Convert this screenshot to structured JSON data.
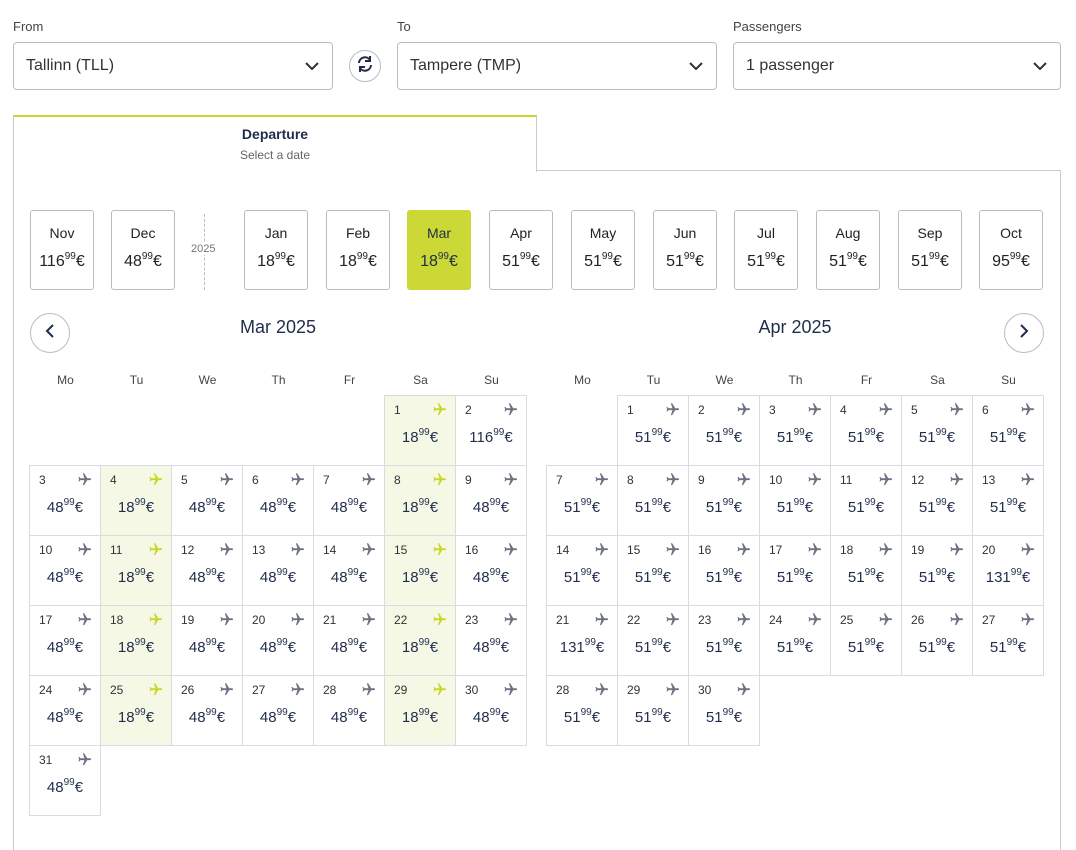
{
  "search": {
    "from": {
      "label": "From",
      "value": "Tallinn (TLL)"
    },
    "to": {
      "label": "To",
      "value": "Tampere (TMP)"
    },
    "passengers": {
      "label": "Passengers",
      "value": "1 passenger"
    }
  },
  "tab": {
    "title": "Departure",
    "subtitle": "Select a date"
  },
  "year_label": "2025",
  "months": [
    {
      "name": "Nov",
      "price": "116",
      "cents": "99",
      "cur": "€",
      "selected": false
    },
    {
      "name": "Dec",
      "price": "48",
      "cents": "99",
      "cur": "€",
      "selected": false
    },
    {
      "name": "Jan",
      "price": "18",
      "cents": "99",
      "cur": "€",
      "selected": false
    },
    {
      "name": "Feb",
      "price": "18",
      "cents": "99",
      "cur": "€",
      "selected": false
    },
    {
      "name": "Mar",
      "price": "18",
      "cents": "99",
      "cur": "€",
      "selected": true
    },
    {
      "name": "Apr",
      "price": "51",
      "cents": "99",
      "cur": "€",
      "selected": false
    },
    {
      "name": "May",
      "price": "51",
      "cents": "99",
      "cur": "€",
      "selected": false
    },
    {
      "name": "Jun",
      "price": "51",
      "cents": "99",
      "cur": "€",
      "selected": false
    },
    {
      "name": "Jul",
      "price": "51",
      "cents": "99",
      "cur": "€",
      "selected": false
    },
    {
      "name": "Aug",
      "price": "51",
      "cents": "99",
      "cur": "€",
      "selected": false
    },
    {
      "name": "Sep",
      "price": "51",
      "cents": "99",
      "cur": "€",
      "selected": false
    },
    {
      "name": "Oct",
      "price": "95",
      "cents": "99",
      "cur": "€",
      "selected": false
    }
  ],
  "weekdays": [
    "Mo",
    "Tu",
    "We",
    "Th",
    "Fr",
    "Sa",
    "Su"
  ],
  "calendars": [
    {
      "title": "Mar 2025",
      "start_offset": 5,
      "days": [
        {
          "d": "1",
          "p": "18"
        },
        {
          "d": "2",
          "p": "116"
        },
        {
          "d": "3",
          "p": "48"
        },
        {
          "d": "4",
          "p": "18"
        },
        {
          "d": "5",
          "p": "48"
        },
        {
          "d": "6",
          "p": "48"
        },
        {
          "d": "7",
          "p": "48"
        },
        {
          "d": "8",
          "p": "18"
        },
        {
          "d": "9",
          "p": "48"
        },
        {
          "d": "10",
          "p": "48"
        },
        {
          "d": "11",
          "p": "18"
        },
        {
          "d": "12",
          "p": "48"
        },
        {
          "d": "13",
          "p": "48"
        },
        {
          "d": "14",
          "p": "48"
        },
        {
          "d": "15",
          "p": "18"
        },
        {
          "d": "16",
          "p": "48"
        },
        {
          "d": "17",
          "p": "48"
        },
        {
          "d": "18",
          "p": "18"
        },
        {
          "d": "19",
          "p": "48"
        },
        {
          "d": "20",
          "p": "48"
        },
        {
          "d": "21",
          "p": "48"
        },
        {
          "d": "22",
          "p": "18"
        },
        {
          "d": "23",
          "p": "48"
        },
        {
          "d": "24",
          "p": "48"
        },
        {
          "d": "25",
          "p": "18"
        },
        {
          "d": "26",
          "p": "48"
        },
        {
          "d": "27",
          "p": "48"
        },
        {
          "d": "28",
          "p": "48"
        },
        {
          "d": "29",
          "p": "18"
        },
        {
          "d": "30",
          "p": "48"
        },
        {
          "d": "31",
          "p": "48"
        }
      ]
    },
    {
      "title": "Apr 2025",
      "start_offset": 1,
      "days": [
        {
          "d": "1",
          "p": "51"
        },
        {
          "d": "2",
          "p": "51"
        },
        {
          "d": "3",
          "p": "51"
        },
        {
          "d": "4",
          "p": "51"
        },
        {
          "d": "5",
          "p": "51"
        },
        {
          "d": "6",
          "p": "51"
        },
        {
          "d": "7",
          "p": "51"
        },
        {
          "d": "8",
          "p": "51"
        },
        {
          "d": "9",
          "p": "51"
        },
        {
          "d": "10",
          "p": "51"
        },
        {
          "d": "11",
          "p": "51"
        },
        {
          "d": "12",
          "p": "51"
        },
        {
          "d": "13",
          "p": "51"
        },
        {
          "d": "14",
          "p": "51"
        },
        {
          "d": "15",
          "p": "51"
        },
        {
          "d": "16",
          "p": "51"
        },
        {
          "d": "17",
          "p": "51"
        },
        {
          "d": "18",
          "p": "51"
        },
        {
          "d": "19",
          "p": "51"
        },
        {
          "d": "20",
          "p": "131"
        },
        {
          "d": "21",
          "p": "131"
        },
        {
          "d": "22",
          "p": "51"
        },
        {
          "d": "23",
          "p": "51"
        },
        {
          "d": "24",
          "p": "51"
        },
        {
          "d": "25",
          "p": "51"
        },
        {
          "d": "26",
          "p": "51"
        },
        {
          "d": "27",
          "p": "51"
        },
        {
          "d": "28",
          "p": "51"
        },
        {
          "d": "29",
          "p": "51"
        },
        {
          "d": "30",
          "p": "51"
        }
      ]
    }
  ],
  "price_cents": "99",
  "currency": "€",
  "colors": {
    "accent": "#cbd835",
    "plane_cheap": "#c9d72a",
    "plane": "#6b7280",
    "cheap_bg": "#f6f8e6",
    "text_dark": "#1f2d4b"
  },
  "icons": {
    "chevron": "chevron-down-icon",
    "swap": "swap-icon",
    "plane": "plane-icon",
    "prev": "chevron-left-icon",
    "next": "chevron-right-icon"
  }
}
